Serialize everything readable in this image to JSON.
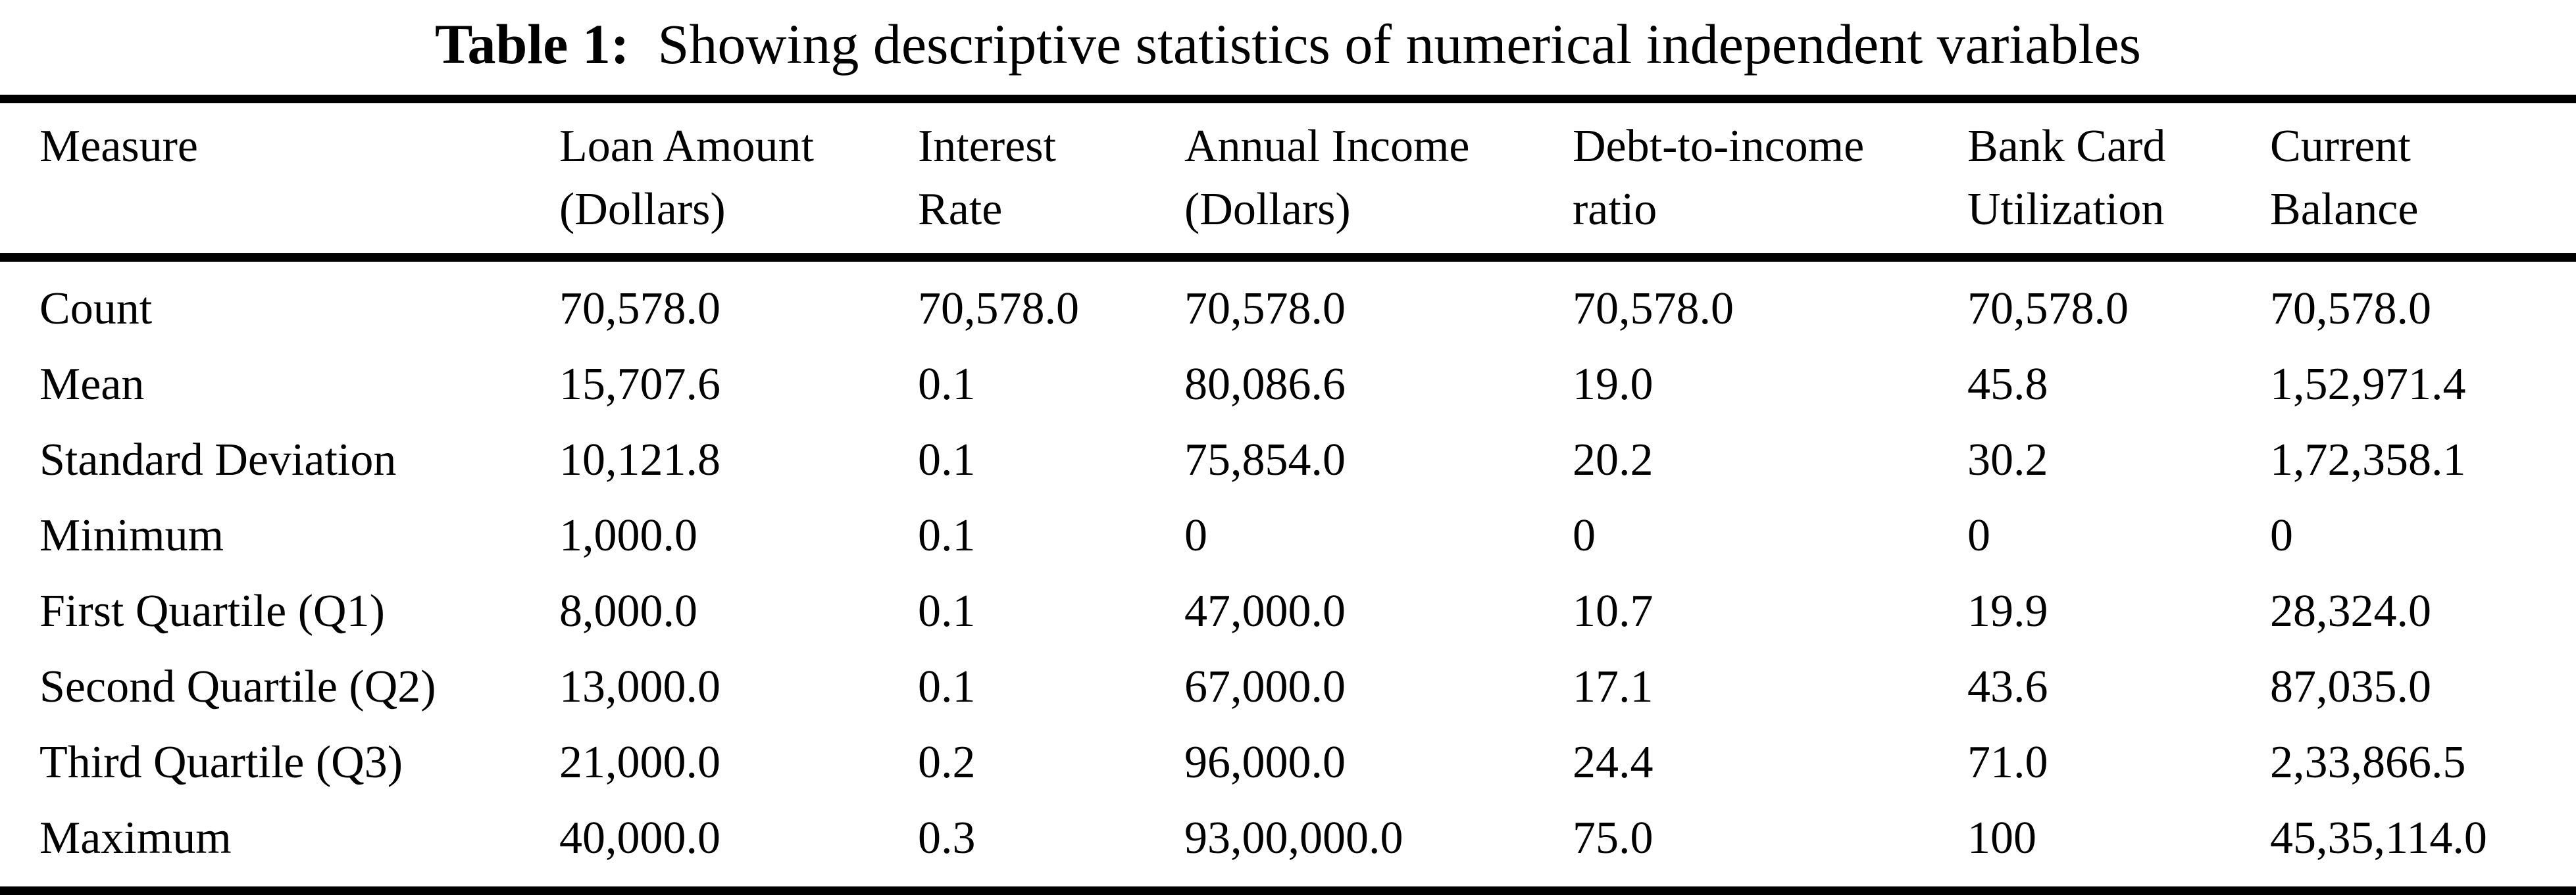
{
  "caption": {
    "label": "Table 1:",
    "text": "Showing descriptive statistics of numerical independent variables"
  },
  "table": {
    "columns": [
      "Measure",
      "Loan Amount (Dollars)",
      "Interest Rate",
      "Annual Income (Dollars)",
      "Debt-to-income ratio",
      "Bank Card Utilization",
      "Current Balance"
    ],
    "rows": [
      [
        "Count",
        "70,578.0",
        "70,578.0",
        "70,578.0",
        "70,578.0",
        "70,578.0",
        "70,578.0"
      ],
      [
        "Mean",
        "15,707.6",
        "0.1",
        "80,086.6",
        "19.0",
        "45.8",
        "1,52,971.4"
      ],
      [
        "Standard Deviation",
        "10,121.8",
        "0.1",
        "75,854.0",
        "20.2",
        "30.2",
        "1,72,358.1"
      ],
      [
        "Minimum",
        "1,000.0",
        "0.1",
        "0",
        "0",
        "0",
        "0"
      ],
      [
        "First Quartile (Q1)",
        "8,000.0",
        "0.1",
        "47,000.0",
        "10.7",
        "19.9",
        "28,324.0"
      ],
      [
        "Second Quartile (Q2)",
        "13,000.0",
        "0.1",
        "67,000.0",
        "17.1",
        "43.6",
        "87,035.0"
      ],
      [
        "Third Quartile (Q3)",
        "21,000.0",
        "0.2",
        "96,000.0",
        "24.4",
        "71.0",
        "2,33,866.5"
      ],
      [
        "Maximum",
        "40,000.0",
        "0.3",
        "93,00,000.0",
        "75.0",
        "100",
        "45,35,114.0"
      ]
    ]
  },
  "chart_data": {
    "type": "table",
    "title": "Table 1: Showing descriptive statistics of numerical independent variables",
    "columns": [
      "Measure",
      "Loan Amount (Dollars)",
      "Interest Rate",
      "Annual Income (Dollars)",
      "Debt-to-income ratio",
      "Bank Card Utilization",
      "Current Balance"
    ],
    "rows": [
      [
        "Count",
        "70,578.0",
        "70,578.0",
        "70,578.0",
        "70,578.0",
        "70,578.0",
        "70,578.0"
      ],
      [
        "Mean",
        "15,707.6",
        "0.1",
        "80,086.6",
        "19.0",
        "45.8",
        "1,52,971.4"
      ],
      [
        "Standard Deviation",
        "10,121.8",
        "0.1",
        "75,854.0",
        "20.2",
        "30.2",
        "1,72,358.1"
      ],
      [
        "Minimum",
        "1,000.0",
        "0.1",
        "0",
        "0",
        "0",
        "0"
      ],
      [
        "First Quartile (Q1)",
        "8,000.0",
        "0.1",
        "47,000.0",
        "10.7",
        "19.9",
        "28,324.0"
      ],
      [
        "Second Quartile (Q2)",
        "13,000.0",
        "0.1",
        "67,000.0",
        "17.1",
        "43.6",
        "87,035.0"
      ],
      [
        "Third Quartile (Q3)",
        "21,000.0",
        "0.2",
        "96,000.0",
        "24.4",
        "71.0",
        "2,33,866.5"
      ],
      [
        "Maximum",
        "40,000.0",
        "0.3",
        "93,00,000.0",
        "75.0",
        "100",
        "45,35,114.0"
      ]
    ]
  }
}
